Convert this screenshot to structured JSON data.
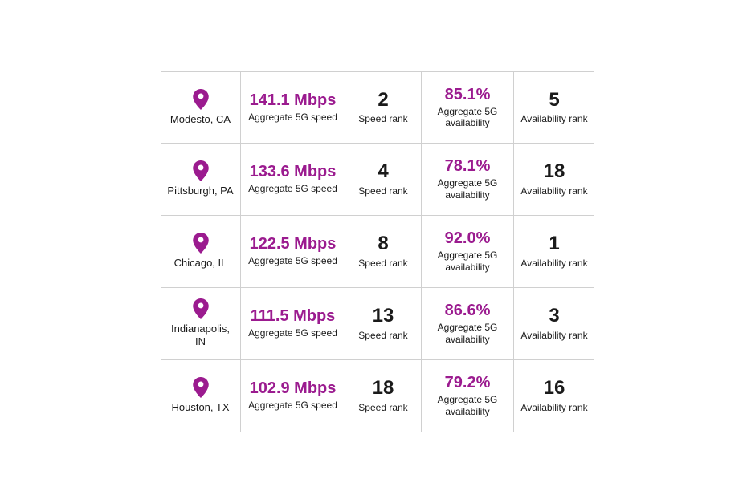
{
  "accent_color": "#9b1b8f",
  "text_color": "#1a1a1a",
  "border_color": "#d0d0d0",
  "background_color": "#ffffff",
  "labels": {
    "speed_sub": "Aggregate 5G speed",
    "speed_rank_sub": "Speed rank",
    "avail_sub": "Aggregate 5G availability",
    "avail_rank_sub": "Availability rank"
  },
  "rows": [
    {
      "city": "Modesto, CA",
      "speed": "141.1 Mbps",
      "speed_rank": "2",
      "availability": "85.1%",
      "avail_rank": "5"
    },
    {
      "city": "Pittsburgh, PA",
      "speed": "133.6 Mbps",
      "speed_rank": "4",
      "availability": "78.1%",
      "avail_rank": "18"
    },
    {
      "city": "Chicago, IL",
      "speed": "122.5 Mbps",
      "speed_rank": "8",
      "availability": "92.0%",
      "avail_rank": "1"
    },
    {
      "city": "Indianapolis, IN",
      "speed": "111.5 Mbps",
      "speed_rank": "13",
      "availability": "86.6%",
      "avail_rank": "3"
    },
    {
      "city": "Houston, TX",
      "speed": "102.9 Mbps",
      "speed_rank": "18",
      "availability": "79.2%",
      "avail_rank": "16"
    }
  ]
}
